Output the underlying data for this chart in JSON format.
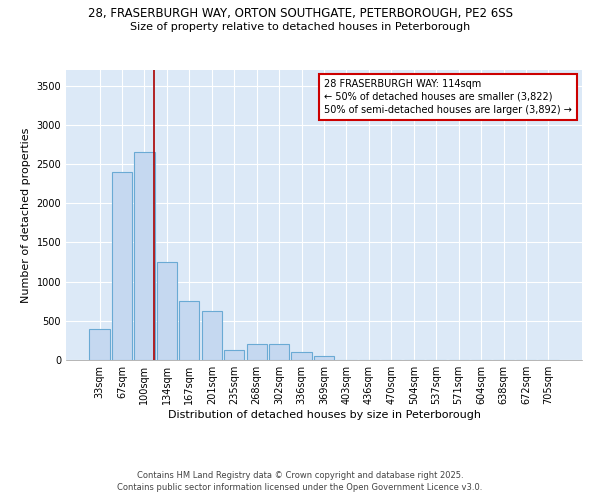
{
  "title_line1": "28, FRASERBURGH WAY, ORTON SOUTHGATE, PETERBOROUGH, PE2 6SS",
  "title_line2": "Size of property relative to detached houses in Peterborough",
  "xlabel": "Distribution of detached houses by size in Peterborough",
  "ylabel": "Number of detached properties",
  "categories": [
    "33sqm",
    "67sqm",
    "100sqm",
    "134sqm",
    "167sqm",
    "201sqm",
    "235sqm",
    "268sqm",
    "302sqm",
    "336sqm",
    "369sqm",
    "403sqm",
    "436sqm",
    "470sqm",
    "504sqm",
    "537sqm",
    "571sqm",
    "604sqm",
    "638sqm",
    "672sqm",
    "705sqm"
  ],
  "values": [
    400,
    2400,
    2650,
    1250,
    750,
    630,
    130,
    200,
    200,
    100,
    50,
    0,
    0,
    0,
    0,
    0,
    0,
    0,
    0,
    0,
    0
  ],
  "bar_color": "#c5d8f0",
  "bar_edge_color": "#6aaad4",
  "red_line_x": 2.42,
  "annotation_title": "28 FRASERBURGH WAY: 114sqm",
  "annotation_line2": "← 50% of detached houses are smaller (3,822)",
  "annotation_line3": "50% of semi-detached houses are larger (3,892) →",
  "annotation_box_color": "#ffffff",
  "annotation_border_color": "#cc0000",
  "ylim": [
    0,
    3700
  ],
  "yticks": [
    0,
    500,
    1000,
    1500,
    2000,
    2500,
    3000,
    3500
  ],
  "background_color": "#dce9f7",
  "grid_color": "#ffffff",
  "footer_line1": "Contains HM Land Registry data © Crown copyright and database right 2025.",
  "footer_line2": "Contains public sector information licensed under the Open Government Licence v3.0.",
  "title_fontsize": 8.5,
  "subtitle_fontsize": 8,
  "axis_label_fontsize": 8,
  "tick_fontsize": 7,
  "annotation_fontsize": 7,
  "footer_fontsize": 6
}
